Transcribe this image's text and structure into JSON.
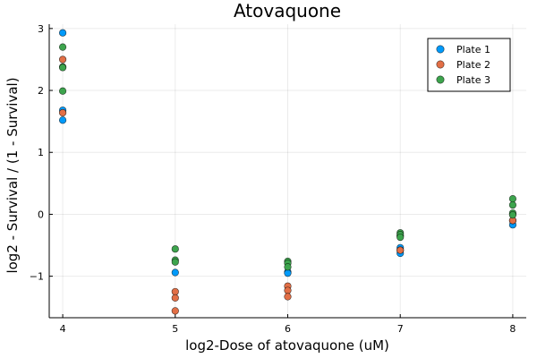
{
  "chart_data": {
    "type": "scatter",
    "title": "Atovaquone",
    "xlabel": "log2-Dose of atovaquone (uM)",
    "ylabel": "log2 - Survival / (1 - Survival)",
    "xlim": [
      3.88,
      8.12
    ],
    "ylim": [
      -1.67,
      3.07
    ],
    "xticks": [
      4,
      5,
      6,
      7,
      8
    ],
    "yticks": [
      -1,
      0,
      1,
      2,
      3
    ],
    "ytick_labels": [
      "−1",
      "0",
      "1",
      "2",
      "3"
    ],
    "grid": true,
    "legend_position": "top-right",
    "series": [
      {
        "name": "Plate 1",
        "color": "#009AFA",
        "points": [
          [
            4,
            2.93
          ],
          [
            4,
            1.68
          ],
          [
            4,
            1.52
          ],
          [
            5,
            -0.94
          ],
          [
            6,
            -0.93
          ],
          [
            6,
            -0.95
          ],
          [
            7,
            -0.54
          ],
          [
            7,
            -0.58
          ],
          [
            7,
            -0.63
          ],
          [
            8,
            -0.17
          ],
          [
            8,
            -0.1
          ]
        ]
      },
      {
        "name": "Plate 2",
        "color": "#E26F46",
        "points": [
          [
            4,
            2.5
          ],
          [
            4,
            1.64
          ],
          [
            5,
            -1.25
          ],
          [
            5,
            -1.35
          ],
          [
            5,
            -1.56
          ],
          [
            6,
            -1.16
          ],
          [
            6,
            -1.23
          ],
          [
            6,
            -1.33
          ],
          [
            7,
            -0.58
          ],
          [
            7,
            -0.35
          ],
          [
            8,
            -0.1
          ],
          [
            8,
            0.0
          ]
        ]
      },
      {
        "name": "Plate 3",
        "color": "#3DA44D",
        "points": [
          [
            4,
            2.7
          ],
          [
            4,
            2.38
          ],
          [
            4,
            2.37
          ],
          [
            4,
            1.99
          ],
          [
            5,
            -0.56
          ],
          [
            5,
            -0.74
          ],
          [
            5,
            -0.77
          ],
          [
            6,
            -0.76
          ],
          [
            6,
            -0.79
          ],
          [
            6,
            -0.85
          ],
          [
            7,
            -0.3
          ],
          [
            7,
            -0.33
          ],
          [
            7,
            -0.37
          ],
          [
            8,
            0.25
          ],
          [
            8,
            0.15
          ],
          [
            8,
            0.02
          ],
          [
            8,
            -0.01
          ]
        ]
      }
    ]
  }
}
